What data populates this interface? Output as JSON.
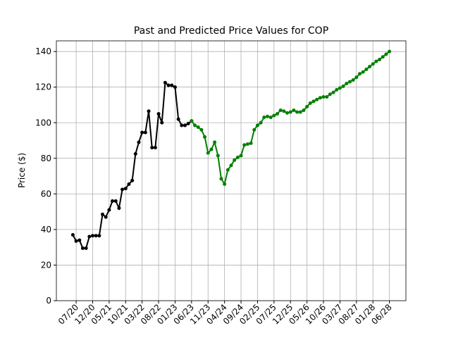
{
  "chart_data": {
    "type": "line",
    "title": "Past and Predicted Price Values for COP",
    "ylabel": "Price ($)",
    "x": [
      "06/20",
      "07/20",
      "08/20",
      "09/20",
      "10/20",
      "11/20",
      "12/20",
      "01/21",
      "02/21",
      "03/21",
      "04/21",
      "05/21",
      "06/21",
      "07/21",
      "08/21",
      "09/21",
      "10/21",
      "11/21",
      "12/21",
      "01/22",
      "02/22",
      "03/22",
      "04/22",
      "05/22",
      "06/22",
      "07/22",
      "08/22",
      "09/22",
      "10/22",
      "11/22",
      "12/22",
      "01/23",
      "02/23",
      "03/23",
      "04/23",
      "05/23",
      "06/23",
      "07/23",
      "08/23",
      "09/23",
      "10/23",
      "11/23",
      "12/23",
      "01/24",
      "02/24",
      "03/24",
      "04/24",
      "05/24",
      "06/24",
      "07/24",
      "08/24",
      "09/24",
      "10/24",
      "11/24",
      "12/24",
      "01/25",
      "02/25",
      "03/25",
      "04/25",
      "05/25",
      "06/25",
      "07/25",
      "08/25",
      "09/25",
      "10/25",
      "11/25",
      "12/25",
      "01/26",
      "02/26",
      "03/26",
      "04/26",
      "05/26",
      "06/26",
      "07/26",
      "08/26",
      "09/26",
      "10/26",
      "11/26",
      "12/26",
      "01/27",
      "02/27",
      "03/27",
      "04/27",
      "05/27",
      "06/27",
      "07/27",
      "08/27",
      "09/27",
      "10/27",
      "11/27",
      "12/27",
      "01/28",
      "02/28",
      "03/28",
      "04/28",
      "05/28",
      "06/28"
    ],
    "series": [
      {
        "color": "#000000",
        "values": [
          37,
          33.5,
          34,
          29.5,
          29.5,
          36,
          36.5,
          36.5,
          36.5,
          48.5,
          47,
          51,
          56,
          56,
          52,
          62.5,
          63,
          65.5,
          67.5,
          82.5,
          89,
          94.5,
          94.5,
          106.5,
          86,
          86,
          105,
          100,
          122.5,
          121,
          121,
          120,
          102,
          98.5,
          98.5,
          99.5,
          101,
          null,
          null,
          null,
          null,
          null,
          null,
          null,
          null,
          null,
          null,
          null,
          null,
          null,
          null,
          null,
          null,
          null,
          null,
          null,
          null,
          null,
          null,
          null,
          null,
          null,
          null,
          null,
          null,
          null,
          null,
          null,
          null,
          null,
          null,
          null,
          null,
          null,
          null,
          null,
          null,
          null,
          null,
          null,
          null,
          null,
          null,
          null,
          null,
          null,
          null,
          null,
          null,
          null,
          null,
          null,
          null,
          null,
          null,
          null,
          null
        ]
      },
      {
        "color": "#008000",
        "values": [
          null,
          null,
          null,
          null,
          null,
          null,
          null,
          null,
          null,
          null,
          null,
          null,
          null,
          null,
          null,
          null,
          null,
          null,
          null,
          null,
          null,
          null,
          null,
          null,
          null,
          null,
          null,
          null,
          null,
          null,
          null,
          null,
          null,
          null,
          null,
          null,
          101,
          98.5,
          97.5,
          96,
          92,
          83,
          85,
          89,
          81.5,
          68.5,
          65.5,
          73.5,
          76,
          79,
          80.5,
          81.5,
          87.5,
          88,
          88.5,
          96,
          98.5,
          100,
          103,
          103.5,
          103,
          104,
          105,
          107,
          106.5,
          105.5,
          106,
          107,
          106,
          106,
          107,
          109,
          111,
          112,
          113,
          114,
          114.5,
          114.5,
          116,
          117,
          118.5,
          119.5,
          120.5,
          122,
          123,
          124,
          125.5,
          127.5,
          128.5,
          130,
          131.5,
          133,
          134.5,
          135.5,
          137,
          138.5,
          140
        ]
      }
    ],
    "xlim": [
      "01/20",
      "11/28"
    ],
    "xticks": [
      "07/20",
      "12/20",
      "05/21",
      "10/21",
      "03/22",
      "08/22",
      "01/23",
      "06/23",
      "11/23",
      "04/24",
      "09/24",
      "02/25",
      "07/25",
      "12/25",
      "05/26",
      "10/26",
      "03/27",
      "08/27",
      "01/28",
      "06/28"
    ],
    "ylim": [
      0,
      146
    ],
    "yticks": [
      0,
      20,
      40,
      60,
      80,
      100,
      120,
      140
    ],
    "grid": true
  }
}
